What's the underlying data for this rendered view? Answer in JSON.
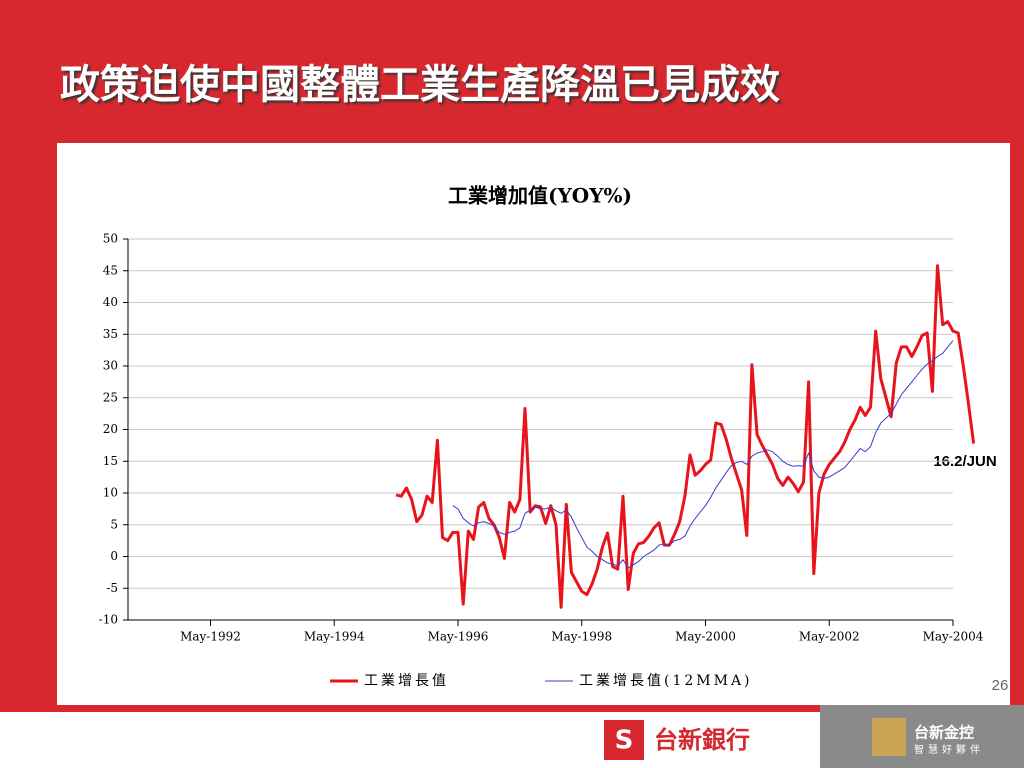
{
  "slide_title": "政策迫使中國整體工業生產降溫已見成效",
  "page_number": "26",
  "footer": {
    "bank": "台新銀行",
    "holding": "台新金控",
    "slogan": "智慧好夥伴"
  },
  "chart_data": {
    "type": "line",
    "title": "工業增加值(YOY%)",
    "annotation": "16.2/JUN",
    "x": [
      "1995-05",
      "1995-06",
      "1995-07",
      "1995-08",
      "1995-09",
      "1995-10",
      "1995-11",
      "1995-12",
      "1996-01",
      "1996-02",
      "1996-03",
      "1996-04",
      "1996-05",
      "1996-06",
      "1996-07",
      "1996-08",
      "1996-09",
      "1996-10",
      "1996-11",
      "1996-12",
      "1997-01",
      "1997-02",
      "1997-03",
      "1997-04",
      "1997-05",
      "1997-06",
      "1997-07",
      "1997-08",
      "1997-09",
      "1997-10",
      "1997-11",
      "1997-12",
      "1998-01",
      "1998-02",
      "1998-03",
      "1998-04",
      "1998-05",
      "1998-06",
      "1998-07",
      "1998-08",
      "1998-09",
      "1998-10",
      "1998-11",
      "1998-12",
      "1999-01",
      "1999-02",
      "1999-03",
      "1999-04",
      "1999-05",
      "1999-06",
      "1999-07",
      "1999-08",
      "1999-09",
      "1999-10",
      "1999-11",
      "1999-12",
      "2000-01",
      "2000-02",
      "2000-03",
      "2000-04",
      "2000-05",
      "2000-06",
      "2000-07",
      "2000-08",
      "2000-09",
      "2000-10",
      "2000-11",
      "2000-12",
      "2001-01",
      "2001-02",
      "2001-03",
      "2001-04",
      "2001-05",
      "2001-06",
      "2001-07",
      "2001-08",
      "2001-09",
      "2001-10",
      "2001-11",
      "2001-12",
      "2002-01",
      "2002-02",
      "2002-03",
      "2002-04",
      "2002-05",
      "2002-06",
      "2002-07",
      "2002-08",
      "2002-09",
      "2002-10",
      "2002-11",
      "2002-12",
      "2003-01",
      "2003-02",
      "2003-03",
      "2003-04",
      "2003-05",
      "2003-06",
      "2003-07",
      "2003-08",
      "2003-09",
      "2003-10",
      "2003-11",
      "2003-12",
      "2004-01",
      "2004-02",
      "2004-03",
      "2004-04",
      "2004-05",
      "2004-06",
      "2004-07",
      "2004-08",
      "2004-09"
    ],
    "series": [
      {
        "name": "工業增長值",
        "color": "#e8141b",
        "width": 3,
        "values": [
          9.7,
          9.5,
          10.8,
          9,
          5.5,
          6.5,
          9.5,
          8.5,
          18.3,
          3,
          2.5,
          3.8,
          3.8,
          -7.5,
          4,
          2.7,
          7.8,
          8.5,
          6,
          5,
          3,
          -0.3,
          8.5,
          7,
          9,
          23.3,
          7,
          8,
          7.8,
          5.2,
          8,
          5,
          -8,
          8.2,
          -2.5,
          -4,
          -5.5,
          -6,
          -4.3,
          -2,
          1.5,
          3.7,
          -1.6,
          -2,
          9.5,
          -5.2,
          0.5,
          2,
          2.2,
          3.2,
          4.5,
          5.3,
          1.8,
          1.8,
          3.5,
          5.5,
          9.5,
          16,
          12.8,
          13.5,
          14.5,
          15.2,
          21,
          20.8,
          18.5,
          15.5,
          13,
          10.5,
          3.3,
          30.2,
          19.2,
          17.5,
          16,
          14.5,
          12.3,
          11.2,
          12.5,
          11.5,
          10.2,
          11.7,
          27.5,
          -2.7,
          10,
          13,
          14.5,
          15.5,
          16.5,
          18,
          20,
          21.5,
          23.5,
          22.2,
          23.5,
          35.5,
          28,
          25,
          22,
          30.5,
          33,
          33,
          31.5,
          33,
          34.8,
          35.2,
          26,
          45.8,
          36.5,
          37,
          35.5,
          35.2,
          30,
          24,
          17.8
        ]
      },
      {
        "name": "工業增長值(12MMA)",
        "color": "#3a3ad0",
        "width": 1,
        "values": [
          null,
          null,
          null,
          null,
          null,
          null,
          null,
          null,
          null,
          null,
          null,
          8,
          7.5,
          6,
          5.3,
          4.8,
          5.3,
          5.5,
          5.2,
          4.8,
          3.8,
          3.5,
          3.8,
          4,
          4.5,
          6.8,
          7.3,
          7.8,
          7.5,
          7.5,
          7.8,
          7.2,
          6.8,
          7.3,
          6.2,
          4.5,
          3,
          1.5,
          0.8,
          0,
          -0.5,
          -1,
          -1.2,
          -1.5,
          -0.5,
          -1.8,
          -1.3,
          -0.8,
          0,
          0.5,
          1,
          1.8,
          2,
          1.8,
          2.5,
          2.7,
          3.2,
          4.8,
          6,
          7,
          8,
          9.3,
          10.8,
          12,
          13.2,
          14.3,
          14.8,
          15,
          14.5,
          15.8,
          16.3,
          16.5,
          16.8,
          16.5,
          15.8,
          15,
          14.5,
          14.2,
          14.3,
          14.2,
          16.3,
          13.5,
          12.5,
          12.3,
          12.5,
          13,
          13.5,
          14,
          15,
          16,
          17,
          16.5,
          17.3,
          19.5,
          21,
          21.8,
          22.5,
          24,
          25.5,
          26.5,
          27.5,
          28.5,
          29.5,
          30.3,
          30.8,
          31.5,
          32,
          33,
          34,
          null,
          null,
          null,
          null
        ]
      }
    ],
    "xlim": [
      "1991-01",
      "2004-05"
    ],
    "xticks": [
      {
        "value": "1992-05",
        "label": "May-1992"
      },
      {
        "value": "1994-05",
        "label": "May-1994"
      },
      {
        "value": "1996-05",
        "label": "May-1996"
      },
      {
        "value": "1998-05",
        "label": "May-1998"
      },
      {
        "value": "2000-05",
        "label": "May-2000"
      },
      {
        "value": "2002-05",
        "label": "May-2002"
      },
      {
        "value": "2004-05",
        "label": "May-2004"
      }
    ],
    "ylim": [
      -10,
      50
    ],
    "yticks": [
      -10,
      -5,
      0,
      5,
      10,
      15,
      20,
      25,
      30,
      35,
      40,
      45,
      50
    ],
    "grid": true,
    "legend": "bottom"
  }
}
